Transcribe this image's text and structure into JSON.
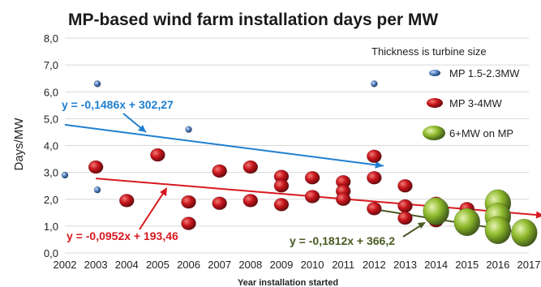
{
  "chart_data": {
    "type": "scatter",
    "title": "MP-based wind farm installation days per MW",
    "xlabel": "Year installation started",
    "ylabel": "Days/MW",
    "xlim": [
      2002,
      2017
    ],
    "ylim": [
      0,
      8
    ],
    "x_ticks": [
      "2002",
      "2003",
      "2004",
      "2005",
      "2006",
      "2007",
      "2008",
      "2009",
      "2010",
      "2011",
      "2012",
      "2013",
      "2014",
      "2015",
      "2016",
      "2017"
    ],
    "y_ticks": [
      "0,0",
      "1,0",
      "2,0",
      "3,0",
      "4,0",
      "5,0",
      "6,0",
      "7,0",
      "8,0"
    ],
    "grid": "horizontal",
    "size_note": "Thickness is turbine size",
    "legend_placement": "right",
    "series": [
      {
        "name": "MP 1.5-2.3MW",
        "color": "#4f7fc0",
        "size": "small",
        "points": [
          [
            2002.0,
            2.9
          ],
          [
            2003.05,
            6.3
          ],
          [
            2003.05,
            2.35
          ],
          [
            2006.0,
            4.6
          ],
          [
            2012.0,
            6.3
          ]
        ],
        "trend": {
          "label": "y = -0,1486x + 302,27",
          "color": "#1f7fd0",
          "x_from": 2002.0,
          "x_to": 2012.3
        }
      },
      {
        "name": "MP 3-4MW",
        "color": "#c8161d",
        "size": "medium",
        "points": [
          [
            2003.0,
            3.2
          ],
          [
            2004.0,
            1.95
          ],
          [
            2005.0,
            3.65
          ],
          [
            2006.0,
            1.9
          ],
          [
            2006.0,
            1.1
          ],
          [
            2007.0,
            3.05
          ],
          [
            2007.0,
            1.85
          ],
          [
            2008.0,
            3.2
          ],
          [
            2008.0,
            1.95
          ],
          [
            2009.0,
            2.85
          ],
          [
            2009.0,
            2.5
          ],
          [
            2009.0,
            1.8
          ],
          [
            2010.0,
            2.8
          ],
          [
            2010.0,
            2.1
          ],
          [
            2011.0,
            2.65
          ],
          [
            2011.0,
            2.3
          ],
          [
            2011.0,
            2.0
          ],
          [
            2012.0,
            3.6
          ],
          [
            2012.0,
            2.8
          ],
          [
            2012.0,
            1.65
          ],
          [
            2013.0,
            2.5
          ],
          [
            2013.0,
            1.75
          ],
          [
            2013.0,
            1.3
          ],
          [
            2014.0,
            1.85
          ],
          [
            2014.0,
            1.6
          ],
          [
            2014.0,
            1.2
          ],
          [
            2015.0,
            1.65
          ]
        ],
        "trend": {
          "label": "y = -0,0952x + 193,46",
          "color": "#d8191f",
          "x_from": 2003.0,
          "x_to": 2017.5
        }
      },
      {
        "name": "6+MW on MP",
        "color": "#8fba2c",
        "size": "large",
        "points": [
          [
            2014.0,
            1.55
          ],
          [
            2015.0,
            1.15
          ],
          [
            2016.0,
            1.85
          ],
          [
            2016.0,
            1.35
          ],
          [
            2016.0,
            0.85
          ],
          [
            2016.85,
            0.75
          ]
        ],
        "trend": {
          "label": "y = -0,1812x + 366,2",
          "color": "#4a5a22",
          "x_from": 2012.0,
          "x_to": 2017.2
        }
      }
    ]
  }
}
